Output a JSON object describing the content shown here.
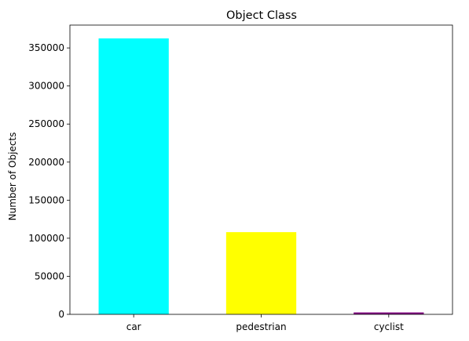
{
  "chart_data": {
    "type": "bar",
    "title": "Object Class",
    "xlabel": "",
    "ylabel": "Number of Objects",
    "categories": [
      "car",
      "pedestrian",
      "cyclist"
    ],
    "values": [
      362500,
      108000,
      2500
    ],
    "bar_colors": [
      "#00ffff",
      "#ffff00",
      "#800080"
    ],
    "ylim": [
      0,
      380000
    ],
    "yticks": [
      0,
      50000,
      100000,
      150000,
      200000,
      250000,
      300000,
      350000
    ],
    "ytick_labels": [
      "0",
      "50000",
      "100000",
      "150000",
      "200000",
      "250000",
      "300000",
      "350000"
    ],
    "grid": false,
    "legend": "none"
  }
}
